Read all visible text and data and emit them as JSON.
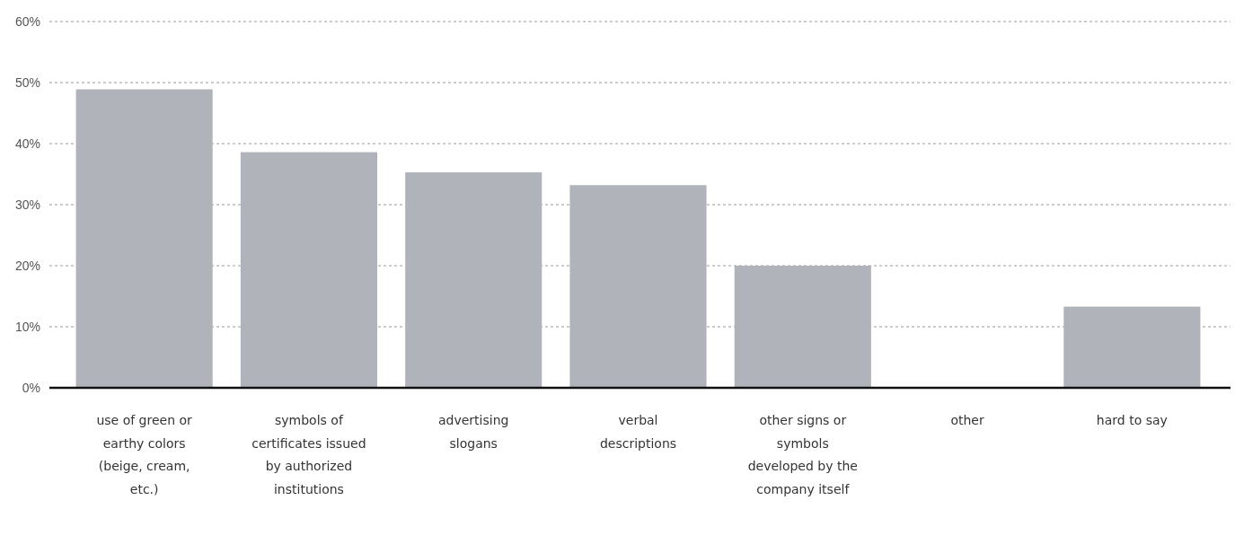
{
  "chart_data": {
    "type": "bar",
    "categories": [
      "use of green or earthy colors (beige, cream, etc.)",
      "symbols of certificates issued by authorized institutions",
      "advertising slogans",
      "verbal descriptions",
      "other signs or symbols developed by the company itself",
      "other",
      "hard to say"
    ],
    "values": [
      48.9,
      38.6,
      35.3,
      33.2,
      20.0,
      0,
      13.3
    ],
    "color": "#b0b4ba",
    "ylim": [
      0,
      60
    ],
    "yticks": [
      {
        "value": 0,
        "label": "0%"
      },
      {
        "value": 10,
        "label": "10%"
      },
      {
        "value": 20,
        "label": "20%"
      },
      {
        "value": 30,
        "label": "30%"
      },
      {
        "value": 40,
        "label": "40%"
      },
      {
        "value": 50,
        "label": "50%"
      },
      {
        "value": 60,
        "label": "60%"
      }
    ],
    "grid": "y"
  }
}
